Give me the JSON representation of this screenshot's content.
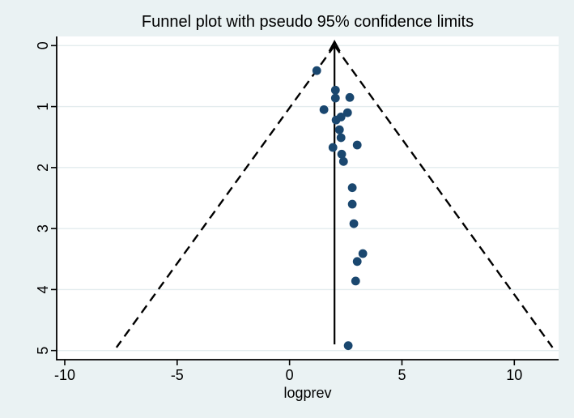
{
  "chart_data": {
    "type": "scatter",
    "title": "Funnel plot with pseudo 95% confidence limits",
    "xlabel": "logprev",
    "ylabel": "",
    "xlim": [
      -10.36,
      11.97
    ],
    "ylim": [
      -0.15,
      5.15
    ],
    "y_axis_reversed": true,
    "x_ticks": [
      -10,
      -5,
      0,
      5,
      10
    ],
    "y_ticks": [
      0,
      1,
      2,
      3,
      4,
      5
    ],
    "grid": "horizontal",
    "legend": "none",
    "points": [
      [
        1.21,
        0.41
      ],
      [
        2.04,
        0.73
      ],
      [
        2.04,
        0.86
      ],
      [
        2.68,
        0.85
      ],
      [
        1.53,
        1.05
      ],
      [
        2.58,
        1.1
      ],
      [
        2.29,
        1.17
      ],
      [
        2.07,
        1.22
      ],
      [
        2.22,
        1.38
      ],
      [
        2.29,
        1.51
      ],
      [
        1.93,
        1.67
      ],
      [
        3.01,
        1.63
      ],
      [
        2.32,
        1.78
      ],
      [
        2.4,
        1.9
      ],
      [
        2.79,
        2.33
      ],
      [
        2.79,
        2.6
      ],
      [
        2.86,
        2.92
      ],
      [
        3.26,
        3.41
      ],
      [
        3.01,
        3.54
      ],
      [
        2.94,
        3.86
      ],
      [
        2.61,
        4.92
      ]
    ],
    "center_line": {
      "x": 2.0,
      "y_top": 0.0,
      "y_bottom": 4.9,
      "style": "solid-with-up-arrow"
    },
    "funnel_limits": {
      "style": "dashed",
      "apex": [
        2.0,
        0.0
      ],
      "left_end": [
        -7.7,
        4.95
      ],
      "right_end": [
        11.7,
        4.95
      ]
    },
    "marker": {
      "shape": "circle",
      "color": "#1a476f",
      "radius_px": 5.4
    }
  },
  "colors": {
    "background": "#eaf2f3",
    "plot_background": "#ffffff",
    "gridline": "#e3ecee",
    "axis_line": "#000000",
    "marker": "#1a476f",
    "funnel_line": "#000000",
    "text": "#000000"
  }
}
